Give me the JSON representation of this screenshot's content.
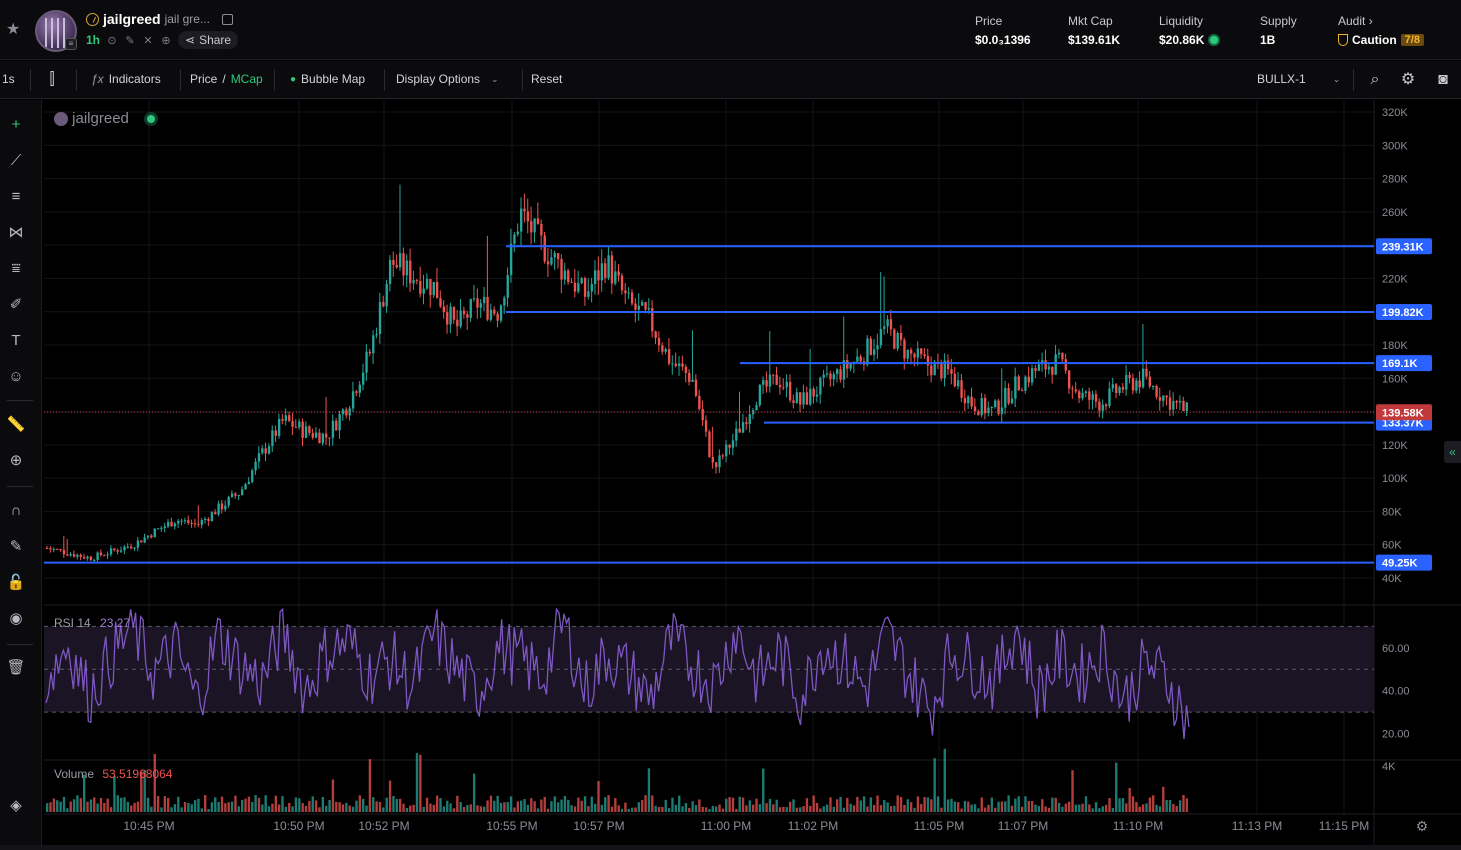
{
  "header": {
    "token_symbol": "jailgreed",
    "token_name": "jail gre...",
    "timeframe": "1h",
    "share_label": "Share",
    "stats": [
      {
        "label": "Price",
        "value": "$0.0₃1396"
      },
      {
        "label": "Mkt Cap",
        "value": "$139.61K"
      },
      {
        "label": "Liquidity",
        "value": "$20.86K"
      },
      {
        "label": "Supply",
        "value": "1B"
      }
    ],
    "audit": {
      "label": "Audit",
      "status": "Caution",
      "score": "7/8"
    }
  },
  "toolbar": {
    "interval": "1s",
    "indicators": "Indicators",
    "price_label": "Price",
    "separator": "/",
    "mcap_label": "MCap",
    "bubble_map": "Bubble Map",
    "display_options": "Display Options",
    "reset": "Reset",
    "pair_selector": "BULLX-1"
  },
  "chart": {
    "watermark": "jailgreed",
    "rsi_label": "RSI 14",
    "rsi_value": "23.27",
    "volume_label": "Volume",
    "volume_value": "53.51968064",
    "colors": {
      "up": "#26a69a",
      "down": "#ef5350",
      "rsi": "#7e57c2",
      "hline": "#2962ff",
      "current": "#c2393c"
    }
  },
  "chart_data": {
    "type": "candlestick",
    "price_axis": {
      "ticks": [
        "320K",
        "300K",
        "280K",
        "260K",
        "240K",
        "220K",
        "200K",
        "180K",
        "160K",
        "140K",
        "120K",
        "100K",
        "80K",
        "60K",
        "40K"
      ],
      "range": [
        40000,
        320000
      ]
    },
    "rsi_axis": {
      "ticks": [
        "60.00",
        "40.00",
        "20.00"
      ],
      "levels": [
        70,
        50,
        30
      ]
    },
    "volume_axis": {
      "ticks": [
        "4K"
      ]
    },
    "time_axis": {
      "ticks": [
        "10:45 PM",
        "10:50 PM",
        "10:52 PM",
        "10:55 PM",
        "10:57 PM",
        "11:00 PM",
        "11:02 PM",
        "11:05 PM",
        "11:07 PM",
        "11:10 PM",
        "11:13 PM",
        "11:15 PM"
      ]
    },
    "horizontal_lines": [
      {
        "label": "239.31K",
        "value": 239310
      },
      {
        "label": "199.82K",
        "value": 199820
      },
      {
        "label": "169.1K",
        "value": 169100
      },
      {
        "label": "133.37K",
        "value": 133370
      },
      {
        "label": "49.25K",
        "value": 49250
      }
    ],
    "current_price": {
      "label": "139.58K",
      "value": 139580
    },
    "series": [
      {
        "name": "Price path",
        "values": [
          58,
          55,
          52,
          56,
          60,
          68,
          75,
          72,
          82,
          92,
          115,
          135,
          128,
          125,
          145,
          175,
          230,
          222,
          215,
          190,
          205,
          200,
          260,
          240,
          225,
          210,
          230,
          205,
          195,
          170,
          160,
          105,
          125,
          150,
          160,
          145,
          155,
          165,
          175,
          190,
          175,
          168,
          163,
          145,
          140,
          155,
          165,
          170,
          150,
          145,
          155,
          160,
          148,
          140
        ]
      },
      {
        "name": "RSI 14",
        "values": [
          45,
          62,
          38,
          55,
          70,
          48,
          60,
          35,
          66,
          52,
          44,
          68,
          40,
          58,
          63,
          47,
          55,
          42,
          67,
          50,
          38,
          61,
          55,
          46,
          72,
          40,
          57,
          49,
          36,
          64,
          51,
          43,
          69,
          45,
          58,
          37,
          62,
          54,
          41,
          66,
          48,
          31,
          59,
          52,
          44,
          70,
          39,
          56,
          47,
          60,
          35,
          53,
          45,
          24
        ]
      }
    ]
  }
}
